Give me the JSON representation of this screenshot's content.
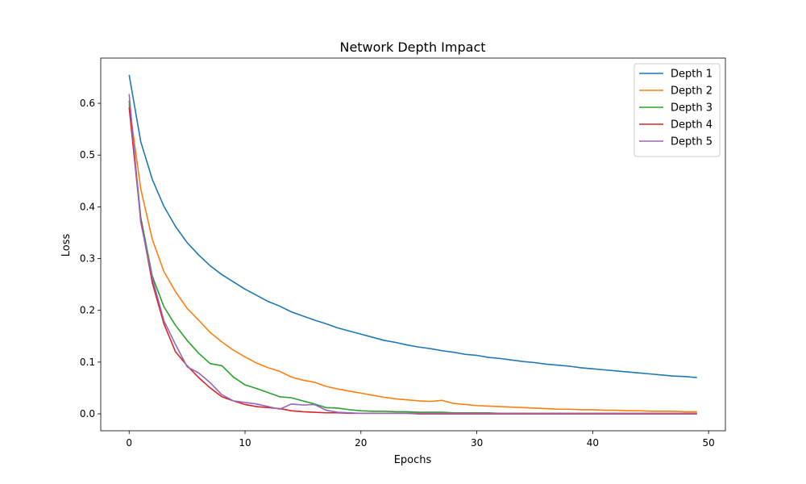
{
  "chart_data": {
    "type": "line",
    "title": "Network Depth Impact",
    "xlabel": "Epochs",
    "ylabel": "Loss",
    "xlim": [
      -2.45,
      51.45
    ],
    "ylim": [
      -0.0327,
      0.6874
    ],
    "xticks": [
      0,
      10,
      20,
      30,
      40,
      50
    ],
    "xtick_labels": [
      "0",
      "10",
      "20",
      "30",
      "40",
      "50"
    ],
    "yticks": [
      0.0,
      0.1,
      0.2,
      0.3,
      0.4,
      0.5,
      0.6
    ],
    "ytick_labels": [
      "0.0",
      "0.1",
      "0.2",
      "0.3",
      "0.4",
      "0.5",
      "0.6"
    ],
    "grid": false,
    "legend_position": "top-right",
    "x": [
      0,
      1,
      2,
      3,
      4,
      5,
      6,
      7,
      8,
      9,
      10,
      11,
      12,
      13,
      14,
      15,
      16,
      17,
      18,
      19,
      20,
      21,
      22,
      23,
      24,
      25,
      26,
      27,
      28,
      29,
      30,
      31,
      32,
      33,
      34,
      35,
      36,
      37,
      38,
      39,
      40,
      41,
      42,
      43,
      44,
      45,
      46,
      47,
      48,
      49
    ],
    "series": [
      {
        "name": "Depth 1",
        "color": "#1f77b4",
        "values": [
          0.655,
          0.526,
          0.453,
          0.401,
          0.362,
          0.331,
          0.307,
          0.286,
          0.269,
          0.255,
          0.241,
          0.229,
          0.217,
          0.208,
          0.197,
          0.189,
          0.181,
          0.174,
          0.166,
          0.16,
          0.154,
          0.148,
          0.142,
          0.138,
          0.133,
          0.129,
          0.126,
          0.122,
          0.119,
          0.115,
          0.113,
          0.109,
          0.107,
          0.104,
          0.101,
          0.099,
          0.096,
          0.094,
          0.092,
          0.089,
          0.087,
          0.085,
          0.083,
          0.081,
          0.079,
          0.077,
          0.075,
          0.073,
          0.072,
          0.07
        ]
      },
      {
        "name": "Depth 2",
        "color": "#ff7f0e",
        "values": [
          0.598,
          0.435,
          0.337,
          0.275,
          0.236,
          0.204,
          0.181,
          0.157,
          0.139,
          0.123,
          0.11,
          0.098,
          0.089,
          0.082,
          0.071,
          0.065,
          0.061,
          0.053,
          0.048,
          0.044,
          0.04,
          0.036,
          0.032,
          0.029,
          0.027,
          0.025,
          0.024,
          0.026,
          0.02,
          0.018,
          0.016,
          0.015,
          0.014,
          0.013,
          0.012,
          0.011,
          0.01,
          0.009,
          0.009,
          0.008,
          0.008,
          0.007,
          0.007,
          0.006,
          0.006,
          0.005,
          0.005,
          0.005,
          0.004,
          0.004
        ]
      },
      {
        "name": "Depth 3",
        "color": "#2ca02c",
        "values": [
          0.605,
          0.38,
          0.266,
          0.207,
          0.171,
          0.142,
          0.117,
          0.097,
          0.093,
          0.071,
          0.056,
          0.049,
          0.041,
          0.033,
          0.031,
          0.025,
          0.019,
          0.012,
          0.011,
          0.008,
          0.006,
          0.005,
          0.005,
          0.004,
          0.004,
          0.003,
          0.003,
          0.003,
          0.002,
          0.002,
          0.002,
          0.002,
          0.001,
          0.001,
          0.001,
          0.001,
          0.001,
          0.001,
          0.001,
          0.001,
          0.001,
          0.001,
          0.001,
          0.001,
          0.001,
          0.001,
          0.001,
          0.001,
          0.001,
          0.001
        ]
      },
      {
        "name": "Depth 4",
        "color": "#d62728",
        "values": [
          0.592,
          0.375,
          0.253,
          0.174,
          0.12,
          0.093,
          0.07,
          0.05,
          0.033,
          0.025,
          0.018,
          0.014,
          0.012,
          0.01,
          0.006,
          0.004,
          0.003,
          0.002,
          0.002,
          0.001,
          0.001,
          0.001,
          0.001,
          0.001,
          0.001,
          0.0,
          0.0,
          0.0,
          0.0,
          0.0,
          0.0,
          0.0,
          0.0,
          0.0,
          0.0,
          0.0,
          0.0,
          0.0,
          0.0,
          0.0,
          0.0,
          0.0,
          0.0,
          0.0,
          0.0,
          0.0,
          0.0,
          0.0,
          0.0,
          0.0
        ]
      },
      {
        "name": "Depth 5",
        "color": "#9467bd",
        "values": [
          0.618,
          0.37,
          0.262,
          0.18,
          0.134,
          0.091,
          0.079,
          0.06,
          0.037,
          0.025,
          0.022,
          0.019,
          0.014,
          0.009,
          0.019,
          0.017,
          0.018,
          0.007,
          0.003,
          0.002,
          0.001,
          0.001,
          0.001,
          0.001,
          0.001,
          0.001,
          0.001,
          0.001,
          0.001,
          0.001,
          0.001,
          0.001,
          0.001,
          0.001,
          0.001,
          0.001,
          0.001,
          0.001,
          0.001,
          0.001,
          0.001,
          0.001,
          0.001,
          0.001,
          0.001,
          0.001,
          0.001,
          0.001,
          0.001,
          0.001
        ]
      }
    ]
  }
}
